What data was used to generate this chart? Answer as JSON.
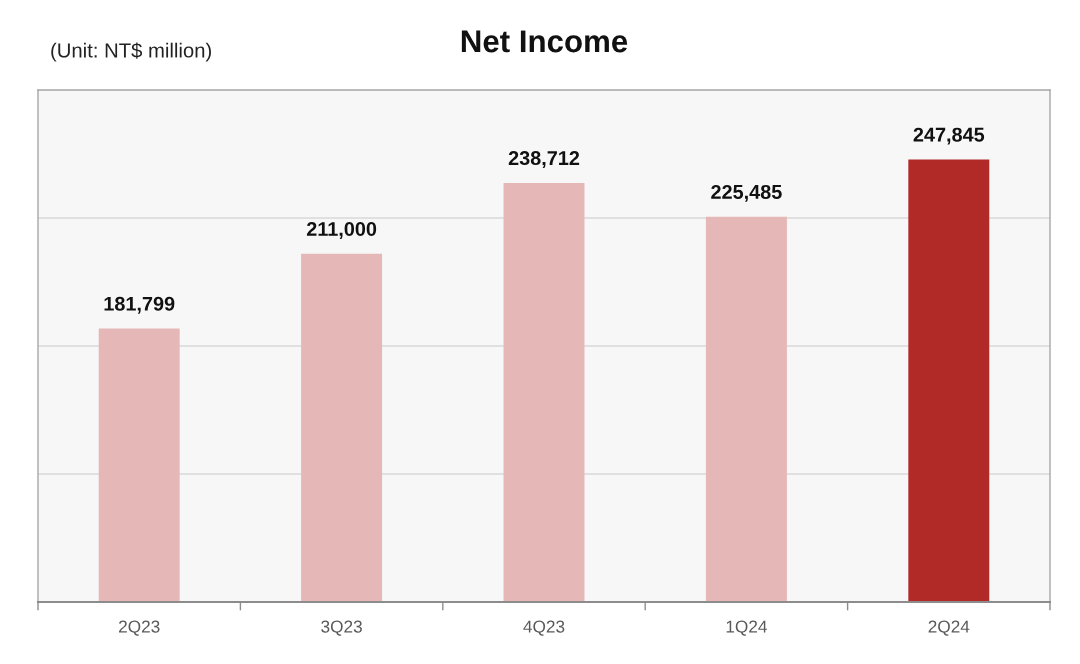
{
  "chart_data": {
    "type": "bar",
    "title": "Net Income",
    "subtitle": "(Unit: NT$ million)",
    "categories": [
      "2Q23",
      "3Q23",
      "4Q23",
      "1Q24",
      "2Q24"
    ],
    "values": [
      181799,
      211000,
      238712,
      225485,
      247845
    ],
    "colors": [
      "#e5b7b7",
      "#e5b7b7",
      "#e5b7b7",
      "#e5b7b7",
      "#b22a28"
    ],
    "value_labels": [
      "181,799",
      "211,000",
      "238,712",
      "225,485",
      "247,845"
    ],
    "ylim": [
      75000,
      275000
    ],
    "yticks": [
      {
        "value": 125000,
        "label": null
      },
      {
        "value": 175000,
        "label": null
      },
      {
        "value": 225000,
        "label": null
      }
    ],
    "grid": "y",
    "tick_labels": "x"
  }
}
